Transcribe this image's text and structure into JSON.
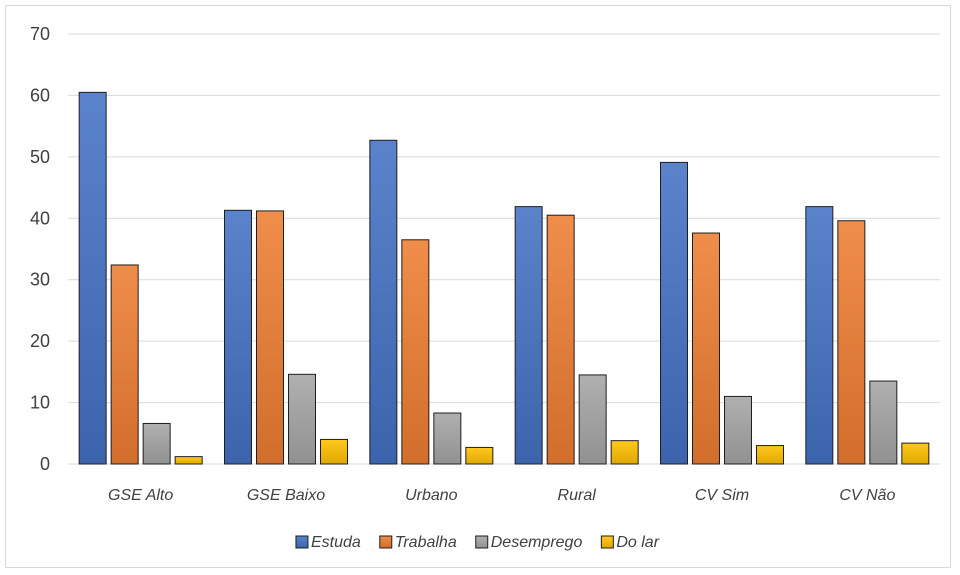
{
  "chart_data": {
    "type": "bar",
    "title": "",
    "xlabel": "",
    "ylabel": "",
    "ylim": [
      0,
      70
    ],
    "yticks": [
      0,
      10,
      20,
      30,
      40,
      50,
      60,
      70
    ],
    "grid": true,
    "legend_position": "bottom",
    "categories": [
      "GSE Alto",
      "GSE Baixo",
      "Urbano",
      "Rural",
      "CV Sim",
      "CV Não"
    ],
    "series": [
      {
        "name": "Estuda",
        "color": "#4472C4",
        "values": [
          60.5,
          41.3,
          52.7,
          41.9,
          49.1,
          41.9
        ]
      },
      {
        "name": "Trabalha",
        "color": "#ED7D31",
        "values": [
          32.4,
          41.2,
          36.5,
          40.5,
          37.6,
          39.6
        ]
      },
      {
        "name": "Desemprego",
        "color": "#A5A5A5",
        "values": [
          6.6,
          14.6,
          8.3,
          14.5,
          11.0,
          13.5
        ]
      },
      {
        "name": "Do lar",
        "color": "#FFC000",
        "values": [
          1.2,
          4.0,
          2.7,
          3.8,
          3.0,
          3.4
        ]
      }
    ]
  }
}
